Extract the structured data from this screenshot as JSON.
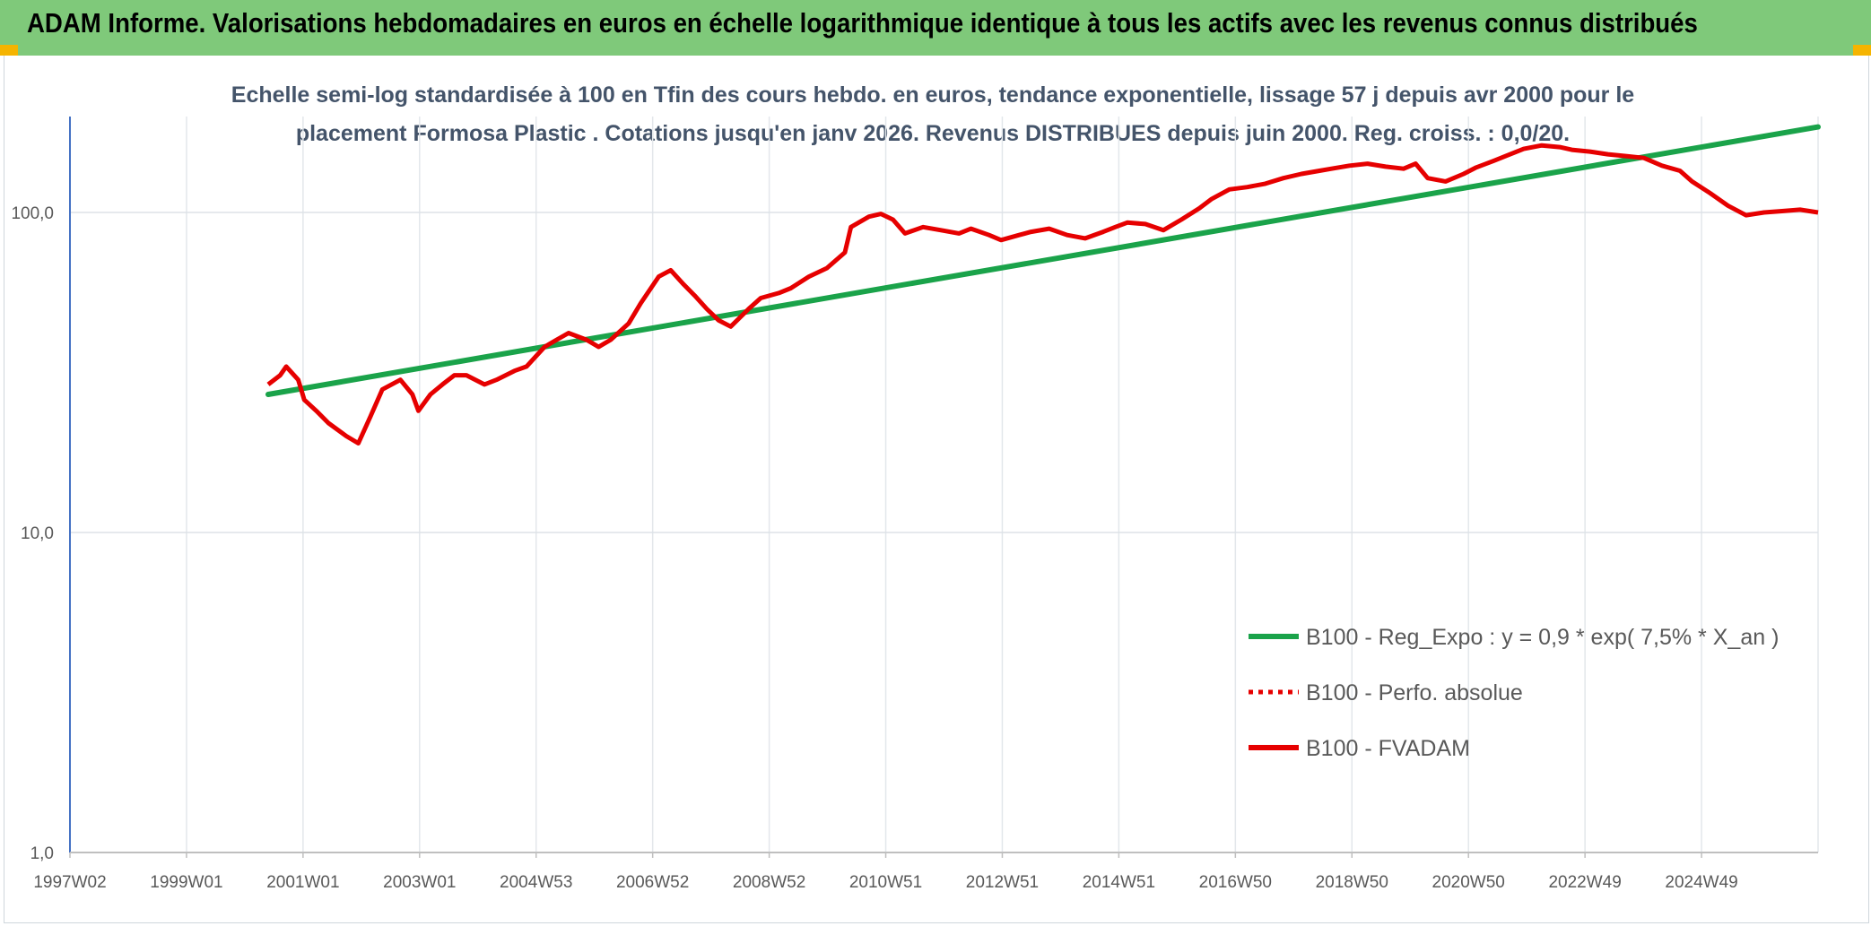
{
  "header": {
    "title": "ADAM Informe. Valorisations hebdomadaires en euros en échelle logarithmique identique à tous les actifs avec les revenus connus distribués"
  },
  "colors": {
    "header_band": "#7fc97a",
    "trend": "#1aa34a",
    "series": "#e60000",
    "corner": "#f5b400"
  },
  "chart_data": {
    "type": "line",
    "title_line1": "Echelle semi-log standardisée à 100 en Tfin des cours hebdo. en euros, tendance exponentielle, lissage 57 j depuis avr 2000 pour le",
    "title_line2": "placement Formosa Plastic . Cotations jusqu'en janv 2026. Revenus DISTRIBUES depuis juin 2000. Reg. croiss. : 0,0/20.",
    "y_scale": "log",
    "ylim": [
      1,
      200
    ],
    "y_ticks": [
      "1,0",
      "10,0",
      "100,0"
    ],
    "x_ticks": [
      "1997W02",
      "1999W01",
      "2001W01",
      "2003W01",
      "2004W53",
      "2006W52",
      "2008W52",
      "2010W51",
      "2012W51",
      "2014W51",
      "2016W50",
      "2018W50",
      "2020W50",
      "2022W49",
      "2024W49"
    ],
    "xlim": [
      1997.0,
      2026.1
    ],
    "grid": true,
    "legend_position": "bottom-right",
    "legend": [
      {
        "label": "B100 - Reg_Expo : y = 0,9 * exp( 7,5% *  X_an )",
        "style": "solid-green"
      },
      {
        "label": "B100 - Perfo. absolue",
        "style": "dotted-red"
      },
      {
        "label": "B100 - FVADAM",
        "style": "solid-red"
      }
    ],
    "series": [
      {
        "name": "B100 - Reg_Expo : y = 0,9 * exp( 7,5% *  X_an )",
        "x": [
          2000.3,
          2026.1
        ],
        "y": [
          27,
          185
        ]
      },
      {
        "name": "B100 - FVADAM",
        "x": [
          2000.3,
          2000.5,
          2000.6,
          2000.8,
          2000.9,
          2001.1,
          2001.3,
          2001.6,
          2001.8,
          2002.0,
          2002.2,
          2002.5,
          2002.7,
          2002.8,
          2003.0,
          2003.2,
          2003.4,
          2003.6,
          2003.9,
          2004.1,
          2004.4,
          2004.6,
          2004.9,
          2005.1,
          2005.3,
          2005.6,
          2005.8,
          2006.0,
          2006.3,
          2006.5,
          2006.8,
          2007.0,
          2007.2,
          2007.4,
          2007.6,
          2007.8,
          2008.0,
          2008.3,
          2008.5,
          2008.8,
          2009.0,
          2009.3,
          2009.6,
          2009.9,
          2010.0,
          2010.3,
          2010.5,
          2010.7,
          2010.9,
          2011.2,
          2011.5,
          2011.8,
          2012.0,
          2012.3,
          2012.5,
          2012.8,
          2013.0,
          2013.3,
          2013.6,
          2013.9,
          2014.2,
          2014.4,
          2014.6,
          2014.9,
          2015.2,
          2015.5,
          2015.8,
          2016.0,
          2016.3,
          2016.6,
          2016.9,
          2017.2,
          2017.5,
          2017.8,
          2018.0,
          2018.3,
          2018.6,
          2018.9,
          2019.2,
          2019.4,
          2019.6,
          2019.9,
          2020.2,
          2020.4,
          2020.7,
          2020.9,
          2021.2,
          2021.5,
          2021.8,
          2022.0,
          2022.3,
          2022.6,
          2022.9,
          2023.2,
          2023.5,
          2023.8,
          2024.0,
          2024.3,
          2024.6,
          2024.9,
          2025.2,
          2025.5,
          2025.8,
          2026.1
        ],
        "y": [
          29,
          31,
          33,
          30,
          26,
          24,
          22,
          20,
          19,
          23,
          28,
          30,
          27,
          24,
          27,
          29,
          31,
          31,
          29,
          30,
          32,
          33,
          38,
          40,
          42,
          40,
          38,
          40,
          45,
          52,
          63,
          66,
          60,
          55,
          50,
          46,
          44,
          50,
          54,
          56,
          58,
          63,
          67,
          75,
          90,
          97,
          99,
          95,
          86,
          90,
          88,
          86,
          89,
          85,
          82,
          85,
          87,
          89,
          85,
          83,
          87,
          90,
          93,
          92,
          88,
          95,
          103,
          110,
          118,
          120,
          123,
          128,
          132,
          135,
          137,
          140,
          142,
          139,
          137,
          142,
          128,
          125,
          132,
          138,
          145,
          150,
          158,
          162,
          160,
          157,
          155,
          152,
          150,
          148,
          140,
          135,
          125,
          115,
          105,
          98,
          100,
          101,
          102,
          100
        ]
      }
    ]
  }
}
